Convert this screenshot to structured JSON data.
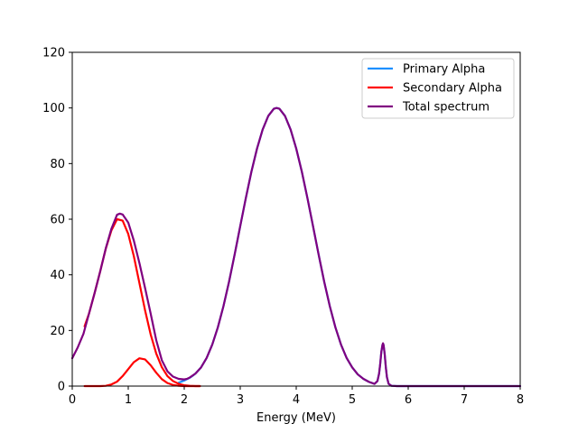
{
  "chart_data": {
    "type": "line",
    "title": "",
    "xlabel": "Energy (MeV)",
    "ylabel": "",
    "xlim": [
      0,
      8
    ],
    "ylim": [
      0,
      120
    ],
    "x_ticks": [
      0,
      1,
      2,
      3,
      4,
      5,
      6,
      7,
      8
    ],
    "y_ticks": [
      0,
      20,
      40,
      60,
      80,
      100,
      120
    ],
    "grid": false,
    "legend_position": "top-right",
    "series": [
      {
        "name": "Primary Alpha",
        "color": "#1e90ff",
        "x": [
          1.9,
          1.95,
          2.0,
          2.05,
          2.1,
          2.15,
          2.2,
          2.3,
          2.4,
          2.5,
          2.6,
          2.7,
          2.8,
          2.9,
          3.0,
          3.1,
          3.2,
          3.3,
          3.4,
          3.5,
          3.6,
          3.65,
          3.7,
          3.8,
          3.9,
          4.0,
          4.1,
          4.2,
          4.3,
          4.4,
          4.5,
          4.6,
          4.7,
          4.8,
          4.9,
          5.0,
          5.1,
          5.2,
          5.3,
          5.4,
          5.45,
          5.48,
          5.5,
          5.52,
          5.54,
          5.55,
          5.56,
          5.58,
          5.6,
          5.62,
          5.65,
          5.7,
          5.8,
          6.0,
          6.5,
          7.0,
          7.5,
          8.0
        ],
        "y": [
          1.2,
          1.6,
          2.0,
          2.5,
          3.0,
          3.7,
          4.5,
          6.7,
          10.1,
          14.9,
          21.1,
          28.7,
          37.5,
          47.3,
          57.5,
          67.6,
          77.1,
          85.4,
          92.2,
          97.1,
          99.7,
          100.0,
          99.7,
          97.1,
          92.2,
          85.4,
          77.1,
          67.6,
          57.5,
          47.3,
          37.5,
          28.7,
          21.1,
          14.9,
          10.1,
          6.7,
          4.2,
          2.6,
          1.5,
          0.8,
          1.8,
          4.5,
          8.0,
          12.3,
          14.8,
          15.0,
          14.8,
          11.5,
          6.8,
          3.2,
          0.8,
          0.1,
          0.0,
          0.0,
          0.0,
          0.0,
          0.0,
          0.0
        ]
      },
      {
        "name": "Secondary Alpha",
        "color": "#ff0000",
        "x": [
          0.22,
          0.3,
          0.4,
          0.5,
          0.6,
          0.7,
          0.8,
          0.9,
          1.0,
          1.1,
          1.2,
          1.3,
          1.4,
          1.5,
          1.6,
          1.7,
          1.8,
          1.9,
          2.0,
          2.1,
          2.2,
          2.28
        ],
        "y": [
          0,
          0,
          0,
          0,
          0.1,
          0.6,
          1.6,
          3.6,
          6.1,
          8.6,
          10.0,
          9.6,
          7.5,
          4.8,
          2.5,
          1.1,
          0.4,
          0.1,
          0,
          0,
          0,
          0
        ]
      },
      {
        "name": "Secondary Alpha",
        "color": "#ff0000",
        "x": [
          0.22,
          0.3,
          0.4,
          0.5,
          0.6,
          0.7,
          0.8,
          0.9,
          1.0,
          1.1,
          1.2,
          1.3,
          1.4,
          1.5,
          1.6,
          1.7,
          1.8,
          1.9,
          2.0,
          2.1,
          2.2,
          2.28
        ],
        "y": [
          21.5,
          26.1,
          33.5,
          41.3,
          49.5,
          56.0,
          60.0,
          59.5,
          54.7,
          46.7,
          37.0,
          27.3,
          18.6,
          11.7,
          6.8,
          3.6,
          1.8,
          0.8,
          0.3,
          0.1,
          0,
          0
        ]
      },
      {
        "name": "Total spectrum",
        "color": "#800080",
        "x": [
          0.0,
          0.1,
          0.2,
          0.3,
          0.4,
          0.5,
          0.6,
          0.7,
          0.8,
          0.85,
          0.9,
          1.0,
          1.1,
          1.2,
          1.3,
          1.4,
          1.5,
          1.6,
          1.7,
          1.8,
          1.9,
          2.0,
          2.05,
          2.1,
          2.2,
          2.3,
          2.4,
          2.5,
          2.6,
          2.7,
          2.8,
          2.9,
          3.0,
          3.1,
          3.2,
          3.3,
          3.4,
          3.5,
          3.6,
          3.65,
          3.7,
          3.8,
          3.9,
          4.0,
          4.1,
          4.2,
          4.3,
          4.4,
          4.5,
          4.6,
          4.7,
          4.8,
          4.9,
          5.0,
          5.1,
          5.2,
          5.3,
          5.4,
          5.45,
          5.48,
          5.5,
          5.52,
          5.54,
          5.55,
          5.56,
          5.58,
          5.6,
          5.62,
          5.65,
          5.7,
          5.8,
          6.0,
          6.5,
          7.0,
          7.5,
          8.0
        ],
        "y": [
          10.0,
          14.0,
          18.8,
          26.1,
          33.5,
          41.3,
          49.6,
          56.6,
          61.6,
          62.0,
          61.7,
          58.8,
          52.3,
          44.2,
          35.3,
          26.1,
          16.5,
          9.3,
          5.3,
          3.4,
          2.6,
          2.4,
          2.6,
          3.1,
          4.5,
          6.7,
          10.1,
          14.9,
          21.1,
          28.7,
          37.5,
          47.3,
          57.5,
          67.6,
          77.1,
          85.4,
          92.2,
          97.1,
          99.7,
          100.0,
          99.7,
          97.1,
          92.2,
          85.4,
          77.1,
          67.6,
          57.5,
          47.3,
          37.5,
          28.7,
          21.1,
          14.9,
          10.1,
          6.7,
          4.2,
          2.6,
          1.5,
          0.8,
          1.8,
          4.5,
          8.0,
          12.3,
          14.8,
          15.4,
          14.8,
          11.5,
          6.8,
          3.2,
          0.8,
          0.1,
          0.0,
          0.0,
          0.0,
          0.0,
          0.0,
          0.0
        ]
      }
    ]
  }
}
